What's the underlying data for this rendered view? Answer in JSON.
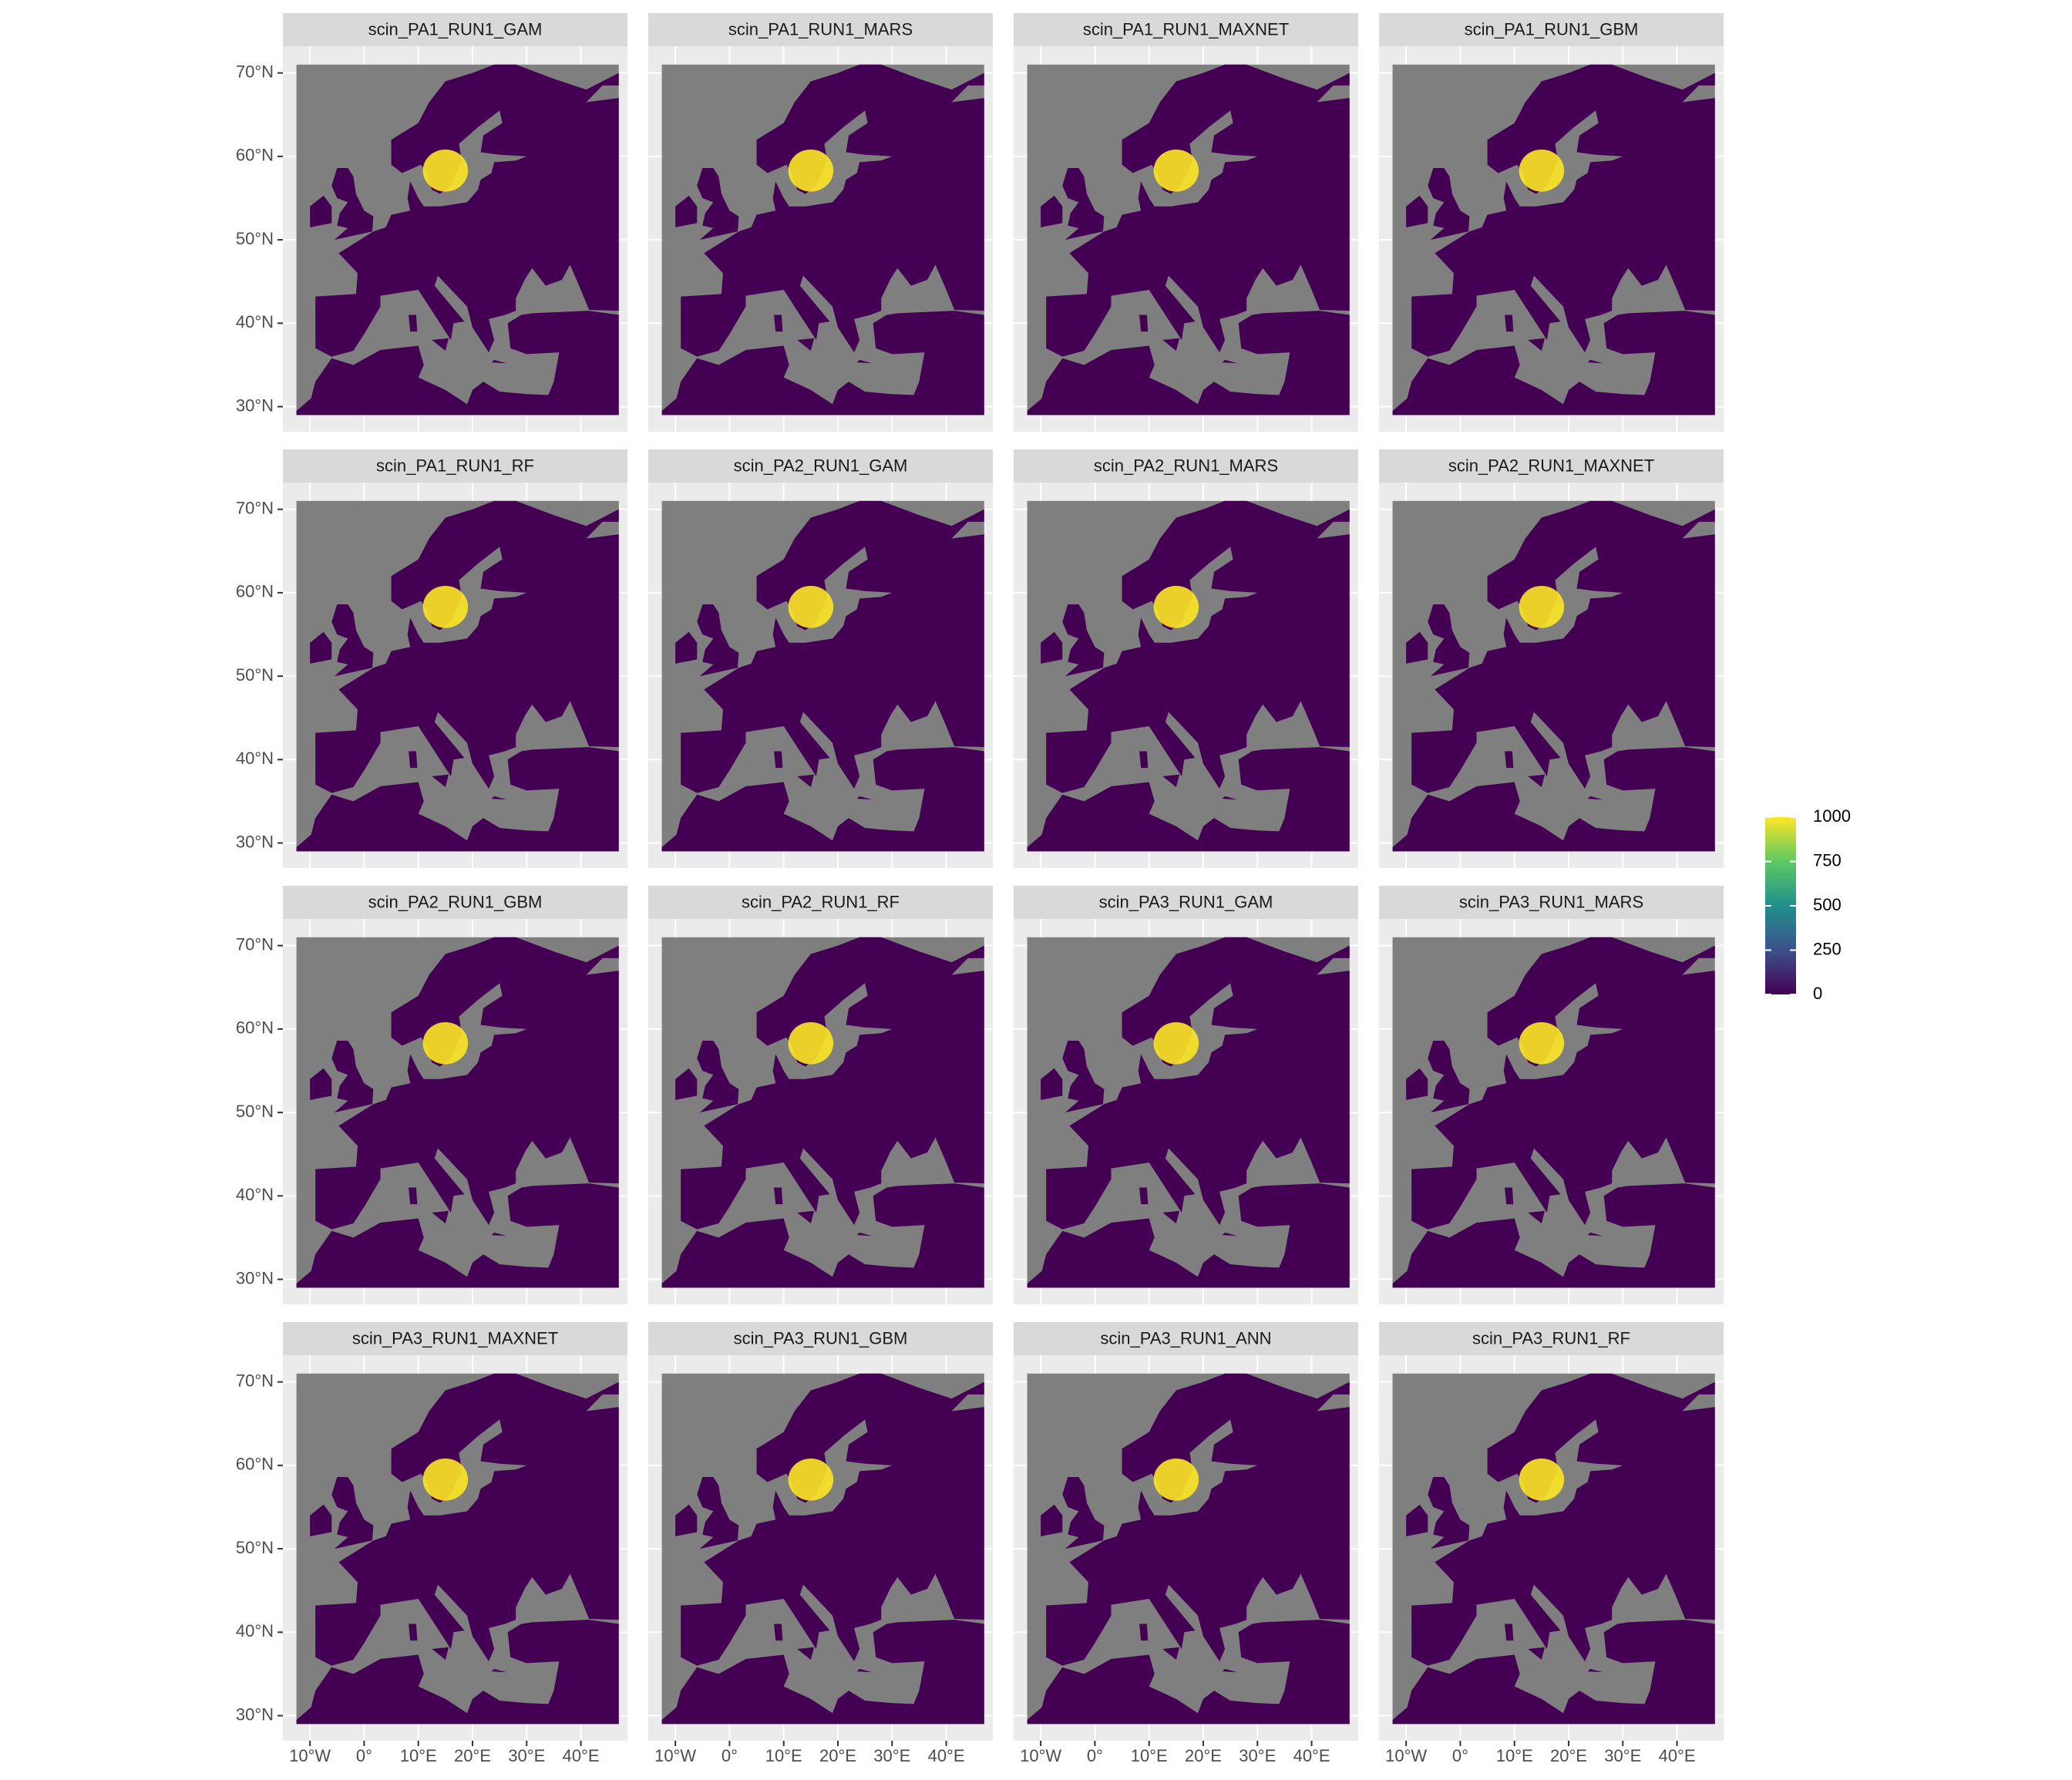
{
  "chart_data": {
    "type": "raster-map",
    "facets": [
      "scin_PA1_RUN1_GAM",
      "scin_PA1_RUN1_MARS",
      "scin_PA1_RUN1_MAXNET",
      "scin_PA1_RUN1_GBM",
      "scin_PA1_RUN1_RF",
      "scin_PA2_RUN1_GAM",
      "scin_PA2_RUN1_MARS",
      "scin_PA2_RUN1_MAXNET",
      "scin_PA2_RUN1_GBM",
      "scin_PA2_RUN1_RF",
      "scin_PA3_RUN1_GAM",
      "scin_PA3_RUN1_MARS",
      "scin_PA3_RUN1_MAXNET",
      "scin_PA3_RUN1_GBM",
      "scin_PA3_RUN1_ANN",
      "scin_PA3_RUN1_RF"
    ],
    "xlim": [
      -15,
      48.6
    ],
    "ylim": [
      27,
      73.2
    ],
    "xticks": [
      {
        "value": -10,
        "label": "10°W"
      },
      {
        "value": 0,
        "label": "0°"
      },
      {
        "value": 10,
        "label": "10°E"
      },
      {
        "value": 20,
        "label": "20°E"
      },
      {
        "value": 30,
        "label": "30°E"
      },
      {
        "value": 40,
        "label": "40°E"
      }
    ],
    "yticks": [
      {
        "value": 30,
        "label": "30°N"
      },
      {
        "value": 40,
        "label": "40°N"
      },
      {
        "value": 50,
        "label": "50°N"
      },
      {
        "value": 60,
        "label": "60°N"
      },
      {
        "value": 70,
        "label": "70°N"
      }
    ],
    "grid": true,
    "legend": {
      "limits": [
        0,
        1000
      ],
      "ticks": [
        0,
        250,
        500,
        750,
        1000
      ],
      "colors": [
        "#440154",
        "#3b528b",
        "#21908c",
        "#5dc863",
        "#fde725"
      ]
    }
  }
}
